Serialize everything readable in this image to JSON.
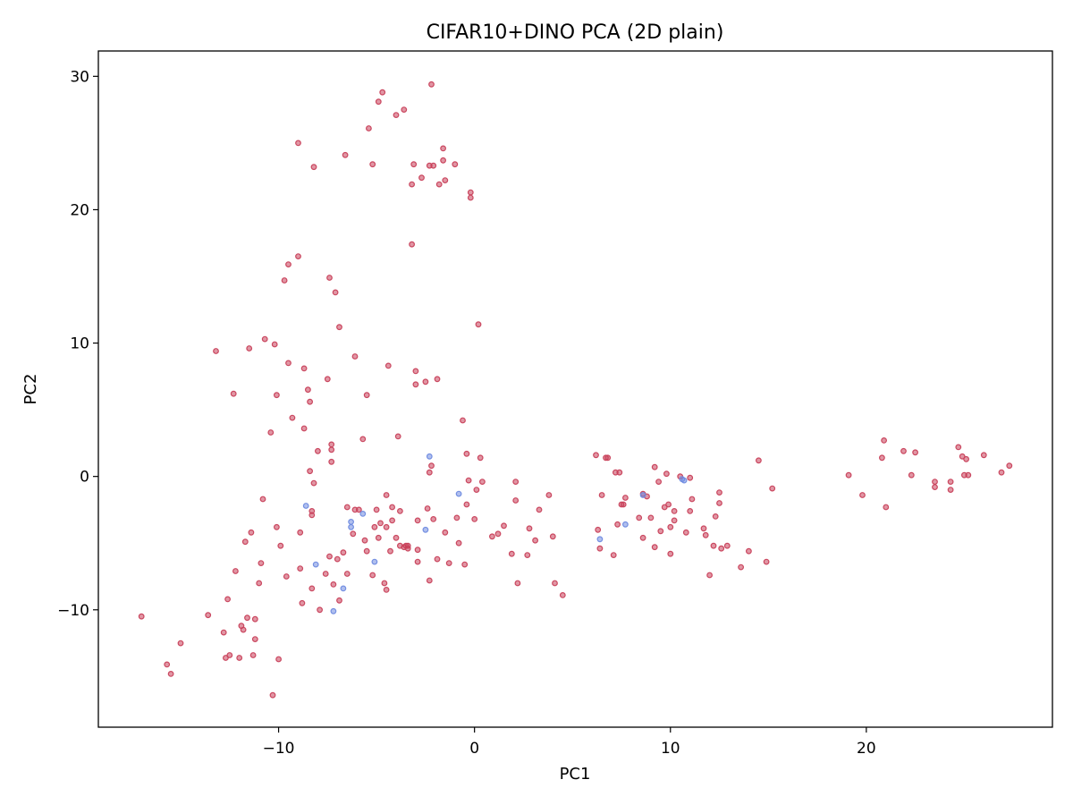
{
  "chart_data": {
    "type": "scatter",
    "title": "CIFAR10+DINO PCA (2D plain)",
    "xlabel": "PC1",
    "ylabel": "PC2",
    "xlim": [
      -19.2,
      29.5
    ],
    "ylim": [
      -18.8,
      31.9
    ],
    "xticks": [
      -10,
      0,
      10,
      20
    ],
    "yticks": [
      -10,
      0,
      10,
      20,
      30
    ],
    "tick_labels": {
      "x": [
        "−10",
        "0",
        "10",
        "20"
      ],
      "y": [
        "−10",
        "0",
        "10",
        "20",
        "30"
      ]
    },
    "grid": false,
    "legend": "none",
    "series": [
      {
        "color": "#c8405a",
        "points": [
          [
            -17.0,
            -10.5
          ],
          [
            -15.7,
            -14.1
          ],
          [
            -15.5,
            -14.8
          ],
          [
            -15.0,
            -12.5
          ],
          [
            -13.6,
            -10.4
          ],
          [
            -13.2,
            9.4
          ],
          [
            -12.8,
            -11.7
          ],
          [
            -12.6,
            -9.2
          ],
          [
            -12.5,
            -13.4
          ],
          [
            -12.3,
            6.2
          ],
          [
            -12.2,
            -7.1
          ],
          [
            -12.7,
            -13.6
          ],
          [
            -12.0,
            -13.6
          ],
          [
            -11.9,
            -11.2
          ],
          [
            -11.8,
            -11.5
          ],
          [
            -11.7,
            -4.9
          ],
          [
            -11.6,
            -10.6
          ],
          [
            -11.5,
            9.6
          ],
          [
            -11.4,
            -4.2
          ],
          [
            -11.3,
            -13.4
          ],
          [
            -11.2,
            -12.2
          ],
          [
            -11.2,
            -10.7
          ],
          [
            -11.0,
            -8.0
          ],
          [
            -10.9,
            -6.5
          ],
          [
            -10.8,
            -1.7
          ],
          [
            -10.7,
            10.3
          ],
          [
            -10.4,
            3.3
          ],
          [
            -10.3,
            -16.4
          ],
          [
            -10.2,
            9.9
          ],
          [
            -10.1,
            6.1
          ],
          [
            -10.1,
            -3.8
          ],
          [
            -10.0,
            -13.7
          ],
          [
            -9.9,
            -5.2
          ],
          [
            -9.7,
            14.7
          ],
          [
            -9.6,
            -7.5
          ],
          [
            -9.5,
            8.5
          ],
          [
            -9.5,
            15.9
          ],
          [
            -9.3,
            4.4
          ],
          [
            -9.0,
            16.5
          ],
          [
            -9.0,
            25.0
          ],
          [
            -8.9,
            -4.2
          ],
          [
            -8.9,
            -6.9
          ],
          [
            -8.8,
            -9.5
          ],
          [
            -8.7,
            3.6
          ],
          [
            -8.7,
            8.1
          ],
          [
            -8.5,
            6.5
          ],
          [
            -8.4,
            5.6
          ],
          [
            -8.4,
            0.4
          ],
          [
            -8.3,
            -2.6
          ],
          [
            -8.3,
            -2.9
          ],
          [
            -8.3,
            -8.4
          ],
          [
            -8.2,
            23.2
          ],
          [
            -8.2,
            -0.5
          ],
          [
            -8.0,
            1.9
          ],
          [
            -7.9,
            -10.0
          ],
          [
            -7.6,
            -7.3
          ],
          [
            -7.4,
            -6.0
          ],
          [
            -7.4,
            14.9
          ],
          [
            -7.5,
            7.3
          ],
          [
            -7.3,
            2.4
          ],
          [
            -7.3,
            2.0
          ],
          [
            -7.3,
            1.1
          ],
          [
            -7.2,
            -8.1
          ],
          [
            -7.1,
            13.8
          ],
          [
            -7.0,
            -6.2
          ],
          [
            -6.9,
            -9.3
          ],
          [
            -6.9,
            11.2
          ],
          [
            -6.7,
            -5.7
          ],
          [
            -6.6,
            24.1
          ],
          [
            -6.5,
            -2.3
          ],
          [
            -6.5,
            -7.3
          ],
          [
            -6.2,
            -4.3
          ],
          [
            -6.1,
            9.0
          ],
          [
            -6.1,
            -2.5
          ],
          [
            -5.9,
            -2.5
          ],
          [
            -5.7,
            2.8
          ],
          [
            -5.6,
            -4.8
          ],
          [
            -5.5,
            -5.6
          ],
          [
            -5.5,
            6.1
          ],
          [
            -5.4,
            26.1
          ],
          [
            -5.2,
            23.4
          ],
          [
            -5.2,
            -7.4
          ],
          [
            -5.1,
            -3.8
          ],
          [
            -5.0,
            -2.5
          ],
          [
            -4.9,
            -4.6
          ],
          [
            -4.9,
            28.1
          ],
          [
            -4.8,
            -3.5
          ],
          [
            -4.7,
            28.8
          ],
          [
            -4.6,
            -8.0
          ],
          [
            -4.5,
            -1.4
          ],
          [
            -4.5,
            -3.8
          ],
          [
            -4.5,
            -8.5
          ],
          [
            -4.4,
            8.3
          ],
          [
            -4.3,
            -5.6
          ],
          [
            -4.2,
            -3.3
          ],
          [
            -4.2,
            -2.3
          ],
          [
            -4.0,
            -4.6
          ],
          [
            -4.0,
            27.1
          ],
          [
            -3.9,
            3.0
          ],
          [
            -3.8,
            -5.2
          ],
          [
            -3.8,
            -2.6
          ],
          [
            -3.6,
            27.5
          ],
          [
            -3.4,
            -5.2
          ],
          [
            -3.2,
            21.9
          ],
          [
            -3.2,
            17.4
          ],
          [
            -3.1,
            23.4
          ],
          [
            -3.0,
            7.9
          ],
          [
            -3.0,
            6.9
          ],
          [
            -2.9,
            -6.4
          ],
          [
            -2.9,
            -5.5
          ],
          [
            -2.9,
            -3.3
          ],
          [
            -2.7,
            22.4
          ],
          [
            -2.5,
            7.1
          ],
          [
            -2.4,
            -2.4
          ],
          [
            -2.3,
            23.3
          ],
          [
            -2.3,
            -7.8
          ],
          [
            -2.3,
            0.3
          ],
          [
            -2.2,
            0.8
          ],
          [
            -2.2,
            29.4
          ],
          [
            -2.1,
            23.3
          ],
          [
            -2.1,
            -3.2
          ],
          [
            -1.9,
            7.3
          ],
          [
            -1.9,
            -6.2
          ],
          [
            -1.8,
            21.9
          ],
          [
            -1.6,
            24.6
          ],
          [
            -1.6,
            23.7
          ],
          [
            -1.5,
            22.2
          ],
          [
            -1.5,
            -4.2
          ],
          [
            -1.3,
            -6.5
          ],
          [
            -1.0,
            23.4
          ],
          [
            -0.9,
            -3.1
          ],
          [
            -0.8,
            -5.0
          ],
          [
            -0.6,
            4.2
          ],
          [
            -0.5,
            -6.6
          ],
          [
            -0.4,
            1.7
          ],
          [
            -0.4,
            -2.1
          ],
          [
            -0.3,
            -0.3
          ],
          [
            -0.2,
            21.3
          ],
          [
            -0.2,
            20.9
          ],
          [
            0.0,
            -3.2
          ],
          [
            0.1,
            -1.0
          ],
          [
            0.2,
            11.4
          ],
          [
            0.3,
            1.4
          ],
          [
            0.4,
            -0.4
          ],
          [
            0.9,
            -4.5
          ],
          [
            1.2,
            -4.3
          ],
          [
            1.5,
            -3.7
          ],
          [
            1.9,
            -5.8
          ],
          [
            2.1,
            -0.4
          ],
          [
            2.1,
            -1.8
          ],
          [
            2.2,
            -8.0
          ],
          [
            2.7,
            -5.9
          ],
          [
            2.8,
            -3.9
          ],
          [
            3.1,
            -4.8
          ],
          [
            3.3,
            -2.5
          ],
          [
            3.8,
            -1.4
          ],
          [
            4.0,
            -4.5
          ],
          [
            4.1,
            -8.0
          ],
          [
            4.5,
            -8.9
          ],
          [
            6.2,
            1.6
          ],
          [
            6.3,
            -4.0
          ],
          [
            6.4,
            -5.4
          ],
          [
            6.5,
            -1.4
          ],
          [
            6.7,
            1.4
          ],
          [
            6.8,
            1.4
          ],
          [
            7.1,
            -5.9
          ],
          [
            7.2,
            0.3
          ],
          [
            7.3,
            -3.6
          ],
          [
            7.4,
            0.3
          ],
          [
            7.5,
            -2.1
          ],
          [
            7.6,
            -2.1
          ],
          [
            7.7,
            -1.6
          ],
          [
            8.4,
            -3.1
          ],
          [
            8.6,
            -1.3
          ],
          [
            8.6,
            -4.6
          ],
          [
            8.8,
            -1.5
          ],
          [
            9.0,
            -3.1
          ],
          [
            9.2,
            0.7
          ],
          [
            9.2,
            -5.3
          ],
          [
            9.4,
            -0.4
          ],
          [
            9.5,
            -4.1
          ],
          [
            9.7,
            -2.3
          ],
          [
            9.8,
            0.2
          ],
          [
            9.9,
            -2.1
          ],
          [
            10.0,
            -3.8
          ],
          [
            10.0,
            -5.8
          ],
          [
            10.2,
            -3.3
          ],
          [
            10.2,
            -2.6
          ],
          [
            10.5,
            0.0
          ],
          [
            10.8,
            -4.2
          ],
          [
            11.0,
            -0.1
          ],
          [
            11.0,
            -2.6
          ],
          [
            11.1,
            -1.7
          ],
          [
            11.7,
            -3.9
          ],
          [
            11.8,
            -4.4
          ],
          [
            12.0,
            -7.4
          ],
          [
            12.2,
            -5.2
          ],
          [
            12.3,
            -3.0
          ],
          [
            12.5,
            -1.2
          ],
          [
            12.5,
            -2.0
          ],
          [
            12.6,
            -5.4
          ],
          [
            12.9,
            -5.2
          ],
          [
            13.6,
            -6.8
          ],
          [
            14.0,
            -5.6
          ],
          [
            14.5,
            1.2
          ],
          [
            14.9,
            -6.4
          ],
          [
            15.2,
            -0.9
          ],
          [
            19.1,
            0.1
          ],
          [
            19.8,
            -1.4
          ],
          [
            20.8,
            1.4
          ],
          [
            20.9,
            2.7
          ],
          [
            21.0,
            -2.3
          ],
          [
            21.9,
            1.9
          ],
          [
            22.3,
            0.1
          ],
          [
            22.5,
            1.8
          ],
          [
            23.5,
            -0.4
          ],
          [
            23.5,
            -0.8
          ],
          [
            24.3,
            -1.0
          ],
          [
            24.3,
            -0.4
          ],
          [
            24.7,
            2.2
          ],
          [
            24.9,
            1.5
          ],
          [
            25.0,
            0.1
          ],
          [
            25.1,
            1.3
          ],
          [
            25.2,
            0.1
          ],
          [
            26.0,
            1.6
          ],
          [
            26.9,
            0.3
          ],
          [
            27.3,
            0.8
          ],
          [
            -3.6,
            -5.3
          ],
          [
            -3.5,
            -5.2
          ],
          [
            -3.4,
            -5.4
          ]
        ]
      },
      {
        "color": "#6f8be0",
        "points": [
          [
            -8.6,
            -2.2
          ],
          [
            -8.1,
            -6.6
          ],
          [
            -7.2,
            -10.1
          ],
          [
            -6.7,
            -8.4
          ],
          [
            -6.3,
            -3.4
          ],
          [
            -6.3,
            -3.8
          ],
          [
            -5.7,
            -2.8
          ],
          [
            -5.1,
            -6.4
          ],
          [
            -2.5,
            -4.0
          ],
          [
            -2.3,
            1.5
          ],
          [
            -0.8,
            -1.3
          ],
          [
            6.4,
            -4.7
          ],
          [
            7.7,
            -3.6
          ],
          [
            8.6,
            -1.4
          ],
          [
            10.6,
            -0.2
          ],
          [
            10.7,
            -0.3
          ]
        ]
      }
    ]
  }
}
